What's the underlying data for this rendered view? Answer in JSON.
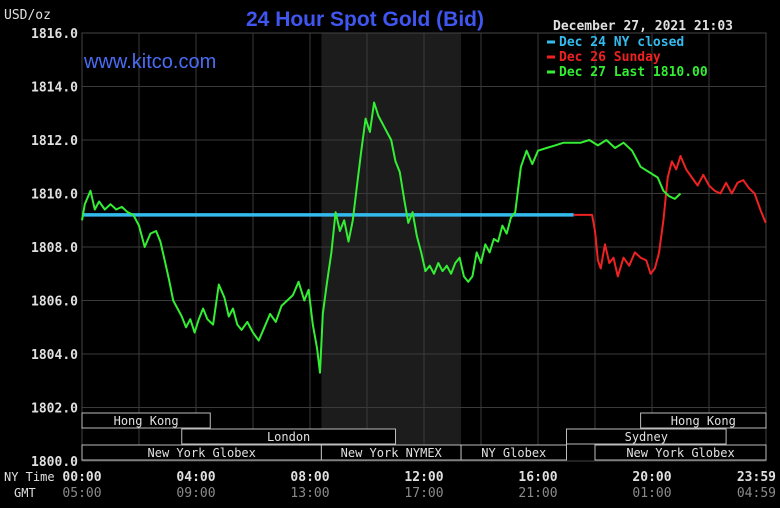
{
  "header": {
    "unit": "USD/oz",
    "title": "24 Hour Spot Gold (Bid)",
    "timestamp": "December 27, 2021 21:03",
    "website": "www.kitco.com"
  },
  "colors": {
    "background": "#000000",
    "plot_background": "#000000",
    "session_shade": "#1c1c1c",
    "grid": "#3a3a3a",
    "title": "#3f56f0",
    "website": "#4a6cf5",
    "text": "#e0e0e0",
    "dec24": "#33bbee",
    "dec26": "#ee2222",
    "dec27": "#33ee33",
    "market_box": "#bdbdbd"
  },
  "legend": {
    "position": "top-right",
    "items": [
      {
        "label": "Dec 24 NY closed",
        "color": "#33bbee"
      },
      {
        "label": "Dec 26 Sunday",
        "color": "#ee2222"
      },
      {
        "label": "Dec 27 Last 1810.00",
        "color": "#33ee33"
      }
    ]
  },
  "axes": {
    "x_row1_label": "NY Time",
    "x_row2_label": "GMT",
    "x_ticks_ny": [
      "00:00",
      "04:00",
      "08:00",
      "12:00",
      "16:00",
      "20:00",
      "23:59"
    ],
    "x_ticks_gmt": [
      "05:00",
      "09:00",
      "13:00",
      "17:00",
      "21:00",
      "01:00",
      "04:59"
    ],
    "y_ticks": [
      "1816.0",
      "1814.0",
      "1812.0",
      "1810.0",
      "1808.0",
      "1806.0",
      "1804.0",
      "1802.0",
      "1800.0"
    ]
  },
  "markets": [
    {
      "name": "Hong Kong",
      "start": 0.0,
      "end": 4.5,
      "row": 0
    },
    {
      "name": "London",
      "start": 3.5,
      "end": 11.0,
      "row": 1
    },
    {
      "name": "New York Globex",
      "start": 0.0,
      "end": 8.4,
      "row": 2
    },
    {
      "name": "New York NYMEX",
      "start": 8.4,
      "end": 13.3,
      "row": 2
    },
    {
      "name": "NY Globex",
      "start": 13.3,
      "end": 17.0,
      "row": 2
    },
    {
      "name": "Hong Kong",
      "start": 19.6,
      "end": 24.0,
      "row": 0
    },
    {
      "name": "Sydney",
      "start": 17.0,
      "end": 22.6,
      "row": 1
    },
    {
      "name": "New York Globex",
      "start": 18.0,
      "end": 24.0,
      "row": 2
    }
  ],
  "chart_data": {
    "type": "line",
    "title": "24 Hour Spot Gold (Bid)",
    "ylabel": "USD/oz",
    "xlabel": "NY Time",
    "xlim": [
      0,
      24
    ],
    "ylim": [
      1800,
      1816
    ],
    "grid": true,
    "legend_position": "top-right",
    "shaded_session_hours": [
      8.4,
      13.3
    ],
    "series": [
      {
        "name": "Dec 24 NY closed",
        "color": "#33bbee",
        "x": [
          0,
          17.25
        ],
        "y": [
          1809.2,
          1809.2
        ]
      },
      {
        "name": "Dec 26 Sunday",
        "color": "#ee2222",
        "x": [
          17.25,
          17.9,
          18.0,
          18.1,
          18.2,
          18.35,
          18.5,
          18.65,
          18.8,
          19.0,
          19.2,
          19.4,
          19.6,
          19.8,
          19.95,
          20.1,
          20.25,
          20.4,
          20.55,
          20.7,
          20.85,
          21.0,
          21.2,
          21.4,
          21.6,
          21.8,
          22.0,
          22.2,
          22.4,
          22.6,
          22.8,
          23.0,
          23.2,
          23.4,
          23.6,
          23.8,
          23.99
        ],
        "y": [
          1809.2,
          1809.2,
          1808.6,
          1807.5,
          1807.2,
          1808.1,
          1807.4,
          1807.6,
          1806.9,
          1807.6,
          1807.3,
          1807.8,
          1807.6,
          1807.5,
          1807.0,
          1807.2,
          1807.8,
          1809.0,
          1810.6,
          1811.2,
          1810.9,
          1811.4,
          1810.9,
          1810.6,
          1810.3,
          1810.7,
          1810.3,
          1810.1,
          1810.0,
          1810.4,
          1810.0,
          1810.4,
          1810.5,
          1810.2,
          1810.0,
          1809.4,
          1808.9
        ]
      },
      {
        "name": "Dec 27 Last 1810.00",
        "color": "#33ee33",
        "x": [
          0.0,
          0.1,
          0.3,
          0.45,
          0.6,
          0.8,
          1.0,
          1.2,
          1.4,
          1.6,
          1.8,
          2.0,
          2.2,
          2.4,
          2.6,
          2.75,
          2.9,
          3.05,
          3.2,
          3.35,
          3.5,
          3.65,
          3.8,
          3.95,
          4.1,
          4.25,
          4.4,
          4.6,
          4.8,
          5.0,
          5.15,
          5.3,
          5.45,
          5.6,
          5.8,
          6.0,
          6.2,
          6.4,
          6.6,
          6.8,
          7.0,
          7.2,
          7.4,
          7.6,
          7.8,
          7.95,
          8.1,
          8.25,
          8.35,
          8.45,
          8.6,
          8.75,
          8.9,
          9.05,
          9.2,
          9.35,
          9.5,
          9.65,
          9.8,
          9.95,
          10.1,
          10.25,
          10.4,
          10.55,
          10.7,
          10.85,
          11.0,
          11.15,
          11.3,
          11.45,
          11.6,
          11.75,
          11.9,
          12.05,
          12.2,
          12.35,
          12.5,
          12.65,
          12.8,
          12.95,
          13.1,
          13.25,
          13.4,
          13.55,
          13.7,
          13.85,
          14.0,
          14.15,
          14.3,
          14.45,
          14.6,
          14.75,
          14.9,
          15.05,
          15.2,
          15.4,
          15.6,
          15.8,
          16.0,
          16.3,
          16.6,
          16.9,
          17.2,
          17.5,
          17.8,
          18.1,
          18.4,
          18.7,
          19.0,
          19.3,
          19.6,
          19.9,
          20.2,
          20.4,
          20.6,
          20.8,
          21.0
        ],
        "y": [
          1809.0,
          1809.6,
          1810.1,
          1809.4,
          1809.7,
          1809.4,
          1809.6,
          1809.4,
          1809.5,
          1809.3,
          1809.2,
          1808.8,
          1808.0,
          1808.5,
          1808.6,
          1808.2,
          1807.5,
          1806.8,
          1806.0,
          1805.7,
          1805.4,
          1805.0,
          1805.3,
          1804.8,
          1805.3,
          1805.7,
          1805.3,
          1805.1,
          1806.6,
          1806.1,
          1805.4,
          1805.7,
          1805.1,
          1804.9,
          1805.2,
          1804.8,
          1804.5,
          1805.0,
          1805.5,
          1805.2,
          1805.8,
          1806.0,
          1806.2,
          1806.7,
          1806.0,
          1806.4,
          1805.1,
          1804.2,
          1803.3,
          1805.5,
          1806.7,
          1807.8,
          1809.3,
          1808.6,
          1809.0,
          1808.2,
          1809.0,
          1810.3,
          1811.6,
          1812.8,
          1812.3,
          1813.4,
          1812.9,
          1812.6,
          1812.3,
          1812.0,
          1811.2,
          1810.8,
          1809.8,
          1808.9,
          1809.3,
          1808.4,
          1807.8,
          1807.1,
          1807.3,
          1807.0,
          1807.4,
          1807.1,
          1807.3,
          1807.0,
          1807.4,
          1807.6,
          1806.9,
          1806.7,
          1806.9,
          1807.8,
          1807.4,
          1808.1,
          1807.8,
          1808.3,
          1808.2,
          1808.8,
          1808.5,
          1809.1,
          1809.3,
          1811.0,
          1811.6,
          1811.1,
          1811.6,
          1811.7,
          1811.8,
          1811.9,
          1811.9,
          1811.9,
          1812.0,
          1811.8,
          1812.0,
          1811.7,
          1811.9,
          1811.6,
          1811.0,
          1810.8,
          1810.6,
          1810.1,
          1809.9,
          1809.8,
          1810.0
        ]
      }
    ]
  }
}
